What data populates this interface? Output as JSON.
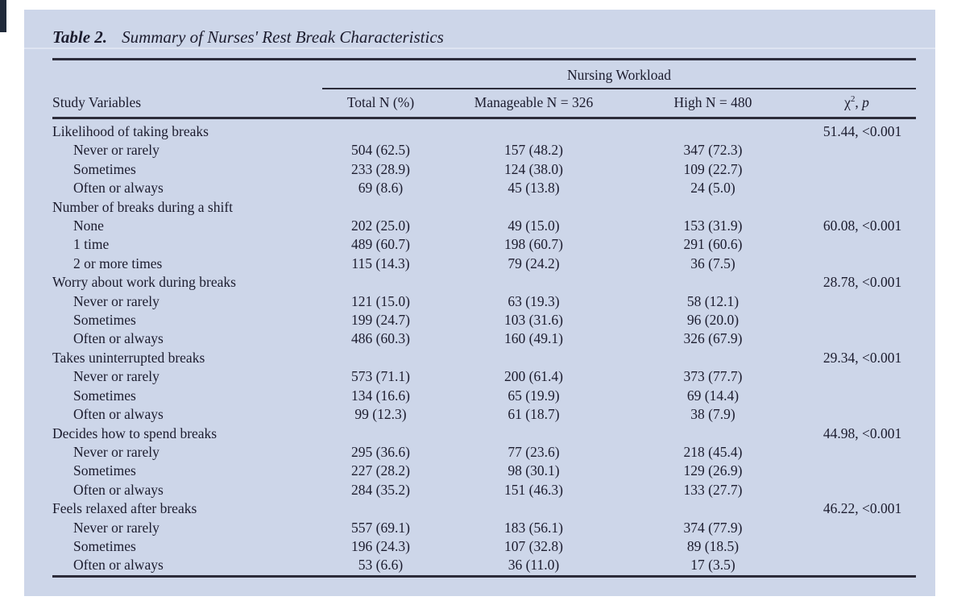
{
  "colors": {
    "panel_background": "#cdd6e9",
    "text": "#1c1c2e",
    "rule": "#2c2c3a"
  },
  "table": {
    "label": "Table 2.",
    "title": "Summary of Nurses' Rest Break Characteristics",
    "spanner": "Nursing Workload",
    "columns": [
      "Study Variables",
      "Total N (%)",
      "Manageable N = 326",
      "High N = 480"
    ],
    "chi_header": {
      "base": "χ",
      "sup": "2",
      "sep": ", ",
      "p": "p"
    },
    "rows": [
      {
        "label": "Likelihood of taking breaks",
        "indent": false,
        "total": "",
        "manageable": "",
        "high": "",
        "chi": "51.44, <0.001"
      },
      {
        "label": "Never or rarely",
        "indent": true,
        "total": "504 (62.5)",
        "manageable": "157 (48.2)",
        "high": "347 (72.3)",
        "chi": ""
      },
      {
        "label": "Sometimes",
        "indent": true,
        "total": "233 (28.9)",
        "manageable": "124 (38.0)",
        "high": "109 (22.7)",
        "chi": ""
      },
      {
        "label": "Often or always",
        "indent": true,
        "total": "69 (8.6)",
        "manageable": "45 (13.8)",
        "high": "24 (5.0)",
        "chi": ""
      },
      {
        "label": "Number of breaks during a shift",
        "indent": false,
        "total": "",
        "manageable": "",
        "high": "",
        "chi": ""
      },
      {
        "label": "None",
        "indent": true,
        "total": "202 (25.0)",
        "manageable": "49 (15.0)",
        "high": "153 (31.9)",
        "chi": "60.08, <0.001"
      },
      {
        "label": "1 time",
        "indent": true,
        "total": "489 (60.7)",
        "manageable": "198 (60.7)",
        "high": "291 (60.6)",
        "chi": ""
      },
      {
        "label": "2 or more times",
        "indent": true,
        "total": "115 (14.3)",
        "manageable": "79 (24.2)",
        "high": "36 (7.5)",
        "chi": ""
      },
      {
        "label": "Worry about work during breaks",
        "indent": false,
        "total": "",
        "manageable": "",
        "high": "",
        "chi": "28.78, <0.001"
      },
      {
        "label": "Never or rarely",
        "indent": true,
        "total": "121 (15.0)",
        "manageable": "63 (19.3)",
        "high": "58 (12.1)",
        "chi": ""
      },
      {
        "label": "Sometimes",
        "indent": true,
        "total": "199 (24.7)",
        "manageable": "103 (31.6)",
        "high": "96 (20.0)",
        "chi": ""
      },
      {
        "label": "Often or always",
        "indent": true,
        "total": "486 (60.3)",
        "manageable": "160 (49.1)",
        "high": "326 (67.9)",
        "chi": ""
      },
      {
        "label": "Takes uninterrupted breaks",
        "indent": false,
        "total": "",
        "manageable": "",
        "high": "",
        "chi": "29.34, <0.001"
      },
      {
        "label": "Never or rarely",
        "indent": true,
        "total": "573 (71.1)",
        "manageable": "200 (61.4)",
        "high": "373 (77.7)",
        "chi": ""
      },
      {
        "label": "Sometimes",
        "indent": true,
        "total": "134 (16.6)",
        "manageable": "65 (19.9)",
        "high": "69 (14.4)",
        "chi": ""
      },
      {
        "label": "Often or always",
        "indent": true,
        "total": "99 (12.3)",
        "manageable": "61 (18.7)",
        "high": "38 (7.9)",
        "chi": ""
      },
      {
        "label": "Decides how to spend breaks",
        "indent": false,
        "total": "",
        "manageable": "",
        "high": "",
        "chi": "44.98, <0.001"
      },
      {
        "label": "Never or rarely",
        "indent": true,
        "total": "295 (36.6)",
        "manageable": "77 (23.6)",
        "high": "218 (45.4)",
        "chi": ""
      },
      {
        "label": "Sometimes",
        "indent": true,
        "total": "227 (28.2)",
        "manageable": "98 (30.1)",
        "high": "129 (26.9)",
        "chi": ""
      },
      {
        "label": "Often or always",
        "indent": true,
        "total": "284 (35.2)",
        "manageable": "151 (46.3)",
        "high": "133 (27.7)",
        "chi": ""
      },
      {
        "label": "Feels relaxed after breaks",
        "indent": false,
        "total": "",
        "manageable": "",
        "high": "",
        "chi": "46.22, <0.001"
      },
      {
        "label": "Never or rarely",
        "indent": true,
        "total": "557 (69.1)",
        "manageable": "183 (56.1)",
        "high": "374 (77.9)",
        "chi": ""
      },
      {
        "label": "Sometimes",
        "indent": true,
        "total": "196 (24.3)",
        "manageable": "107 (32.8)",
        "high": "89 (18.5)",
        "chi": ""
      },
      {
        "label": "Often or always",
        "indent": true,
        "total": "53 (6.6)",
        "manageable": "36 (11.0)",
        "high": "17 (3.5)",
        "chi": ""
      }
    ]
  }
}
